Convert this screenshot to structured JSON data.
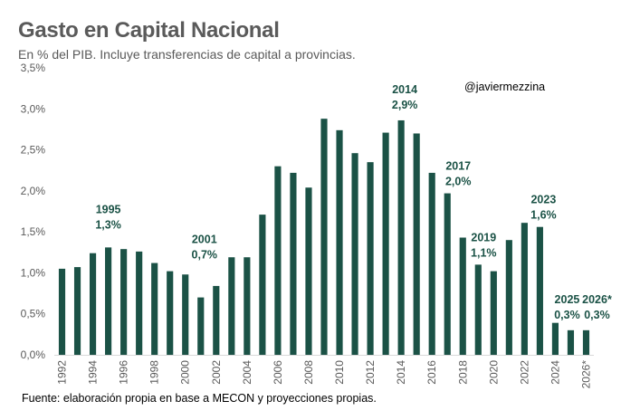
{
  "chart_data": {
    "type": "bar",
    "title": "Gasto en Capital Nacional",
    "subtitle": "En % del PIB. Incluye transferencias de capital a provincias.",
    "handle": "@javiermezzina",
    "source": "Fuente: elaboración propia en base a MECON y proyecciones propias.",
    "bar_color": "#1b5246",
    "annotation_color": "#1b5246",
    "ylim": [
      0,
      3.5
    ],
    "yticks": [
      "0,0%",
      "0,5%",
      "1,0%",
      "1,5%",
      "2,0%",
      "2,5%",
      "3,0%",
      "3,5%"
    ],
    "categories": [
      "1992",
      "1993",
      "1994",
      "1995",
      "1996",
      "1997",
      "1998",
      "1999",
      "2000",
      "2001",
      "2002",
      "2003",
      "2004",
      "2005",
      "2006",
      "2007",
      "2008",
      "2009",
      "2010",
      "2011",
      "2012",
      "2013",
      "2014",
      "2015",
      "2016",
      "2017",
      "2018",
      "2019",
      "2020",
      "2021",
      "2022",
      "2023",
      "2024",
      "2025",
      "2026*"
    ],
    "xtick_labels": [
      "1992",
      "1994",
      "1996",
      "1998",
      "2000",
      "2002",
      "2004",
      "2006",
      "2008",
      "2010",
      "2012",
      "2014",
      "2016",
      "2018",
      "2020",
      "2022",
      "2024",
      "2026*"
    ],
    "values": [
      1.05,
      1.07,
      1.24,
      1.31,
      1.29,
      1.26,
      1.12,
      1.02,
      0.98,
      0.7,
      0.84,
      1.19,
      1.19,
      1.71,
      2.3,
      2.22,
      2.04,
      2.88,
      2.74,
      2.46,
      2.35,
      2.71,
      2.86,
      2.7,
      2.22,
      1.97,
      1.43,
      1.1,
      1.02,
      1.4,
      1.61,
      1.56,
      0.39,
      0.3,
      0.3
    ],
    "annotations": [
      {
        "category": "1995",
        "year": "1995",
        "value": "1,3%"
      },
      {
        "category": "2001",
        "year": "2001",
        "value": "0,7%"
      },
      {
        "category": "2014",
        "year": "2014",
        "value": "2,9%"
      },
      {
        "category": "2017",
        "year": "2017",
        "value": "2,0%"
      },
      {
        "category": "2019",
        "year": "2019",
        "value": "1,1%"
      },
      {
        "category": "2023",
        "year": "2023",
        "value": "1,6%"
      },
      {
        "category": "2025",
        "year": "2025",
        "value": "0,3%"
      },
      {
        "category": "2026*",
        "year": "2026*",
        "value": "0,3%"
      }
    ]
  }
}
